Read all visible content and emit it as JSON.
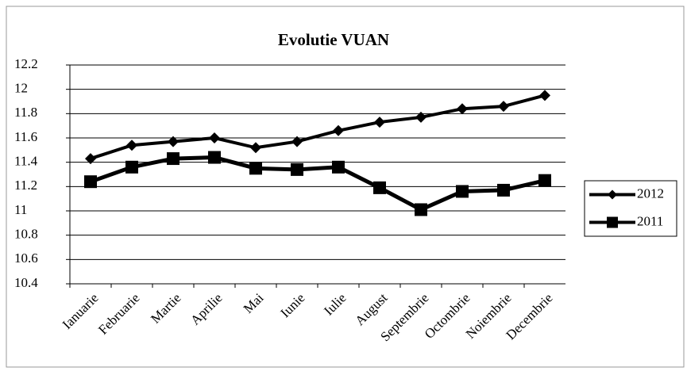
{
  "chart_data": {
    "type": "line",
    "title": "Evolutie VUAN",
    "categories": [
      "Ianuarie",
      "Februarie",
      "Martie",
      "Aprilie",
      "Mai",
      "Iunie",
      "Iulie",
      "August",
      "Septembrie",
      "Octombrie",
      "Noiembrie",
      "Decembrie"
    ],
    "series": [
      {
        "name": "2012",
        "color": "#000000",
        "marker": "diamond",
        "values": [
          11.43,
          11.54,
          11.57,
          11.6,
          11.52,
          11.57,
          11.66,
          11.73,
          11.77,
          11.84,
          11.86,
          11.95
        ]
      },
      {
        "name": "2011",
        "color": "#000000",
        "marker": "square",
        "values": [
          11.24,
          11.36,
          11.43,
          11.44,
          11.35,
          11.34,
          11.36,
          11.19,
          11.01,
          11.16,
          11.17,
          11.25
        ]
      }
    ],
    "ylim": [
      10.4,
      12.2
    ],
    "yticks": [
      10.4,
      10.6,
      10.8,
      11,
      11.2,
      11.4,
      11.6,
      11.8,
      12,
      12.2
    ],
    "grid": true,
    "legend": "right"
  }
}
